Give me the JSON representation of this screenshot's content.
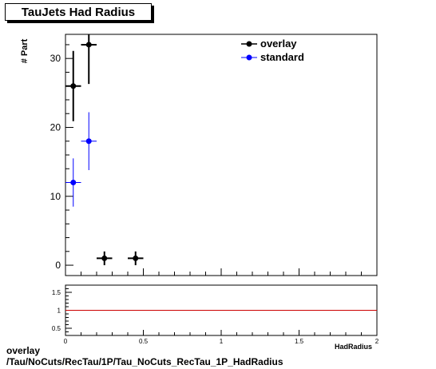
{
  "chart_data": [
    {
      "type": "scatter",
      "title": "TauJets Had Radius",
      "ylabel": "# Part",
      "xlim": [
        0,
        2
      ],
      "ylim": [
        -1.5,
        33.5
      ],
      "x_ticks": [
        "0",
        "0.5",
        "1",
        "1.5",
        "2"
      ],
      "y_ticks": [
        "0",
        "10",
        "20",
        "30"
      ],
      "grid": false,
      "legend_position": "top-right",
      "series": [
        {
          "name": "overlay",
          "color": "#000000",
          "points": [
            {
              "x": 0.05,
              "y": 26,
              "yerr": 5.1
            },
            {
              "x": 0.15,
              "y": 32,
              "yerr": 5.7
            },
            {
              "x": 0.25,
              "y": 1,
              "yerr": 1
            },
            {
              "x": 0.45,
              "y": 1,
              "yerr": 1
            }
          ]
        },
        {
          "name": "standard",
          "color": "#0000ff",
          "points": [
            {
              "x": 0.05,
              "y": 12,
              "yerr": 3.5
            },
            {
              "x": 0.15,
              "y": 18,
              "yerr": 4.2
            }
          ]
        }
      ],
      "x_bin_halfwidth": 0.05
    },
    {
      "type": "line",
      "title": "",
      "xlim": [
        0,
        2
      ],
      "ylim": [
        0.3,
        1.7
      ],
      "x_ticks": [
        "0",
        "0.5",
        "1",
        "1.5",
        "2"
      ],
      "y_ticks": [
        "0.5",
        "1",
        "1.5"
      ],
      "reference_line": {
        "y": 1,
        "color": "#cc0000"
      }
    }
  ],
  "footer": {
    "line1": "overlay",
    "line2": "/Tau/NoCuts/RecTau/1P/Tau_NoCuts_RecTau_1P_HadRadius"
  },
  "xlabel_cut": "HadRadius"
}
